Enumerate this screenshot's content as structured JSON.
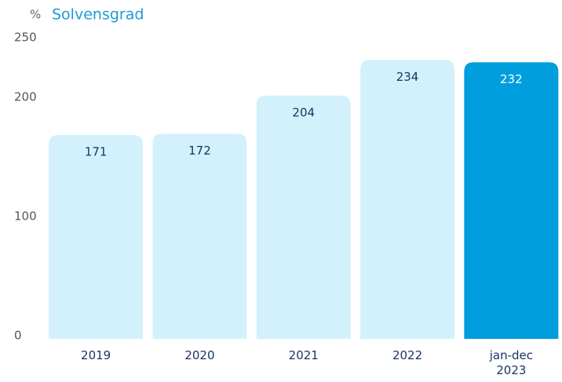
{
  "chart_data": {
    "type": "bar",
    "title": "Solvensgrad",
    "y_label": "%",
    "categories": [
      "2019",
      "2020",
      "2021",
      "2022",
      "jan-dec 2023"
    ],
    "values": [
      171,
      172,
      204,
      234,
      232
    ],
    "colors": [
      "#d3f1fc",
      "#d3f1fc",
      "#d3f1fc",
      "#d3f1fc",
      "#009ddf"
    ],
    "value_label_colors": [
      "#1b3463",
      "#1b3463",
      "#1b3463",
      "#1b3463",
      "#ffffff"
    ],
    "ylim": [
      0,
      250
    ],
    "yticks": [
      0,
      100,
      200,
      250
    ],
    "grid": false
  }
}
